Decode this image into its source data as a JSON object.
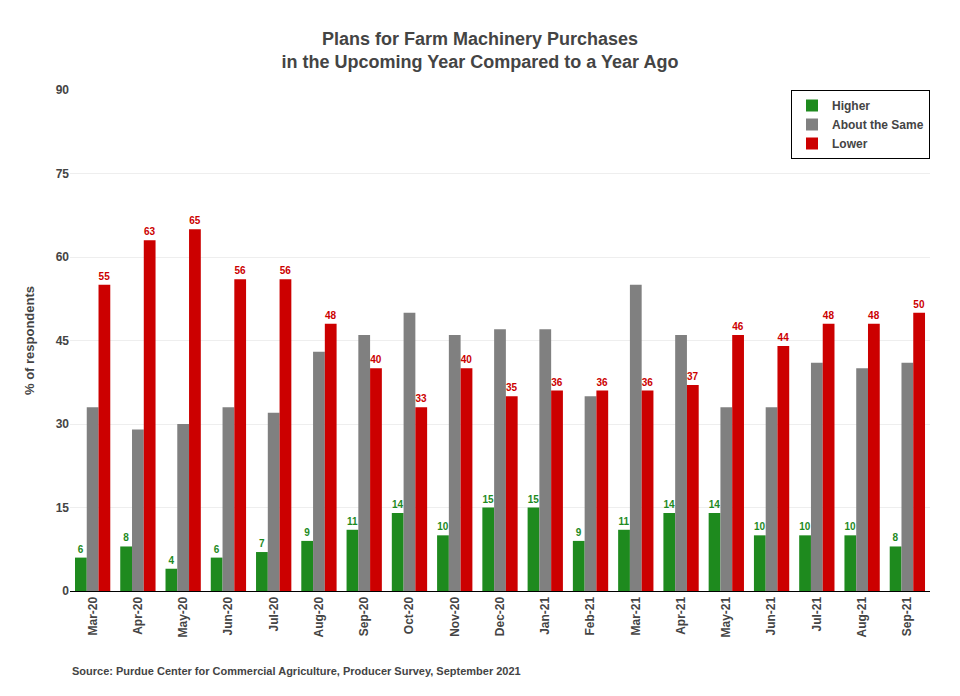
{
  "chart_data": {
    "type": "bar",
    "title": "Plans for Farm Machinery Purchases\nin the Upcoming Year Compared to a Year Ago",
    "y_label": "% of respondents",
    "annotations": [
      "Source: Purdue Center for Commercial Agriculture, Producer Survey, September 2021"
    ],
    "categories": [
      "Mar-20",
      "Apr-20",
      "May-20",
      "Jun-20",
      "Jul-20",
      "Aug-20",
      "Sep-20",
      "Oct-20",
      "Nov-20",
      "Dec-20",
      "Jan-21",
      "Feb-21",
      "Mar-21",
      "Apr-21",
      "May-21",
      "Jun-21",
      "Jul-21",
      "Aug-21",
      "Sep-21"
    ],
    "series": [
      {
        "name": "Higher",
        "color": "#1e8a1e",
        "data_labels": true,
        "values": [
          6,
          8,
          4,
          6,
          7,
          9,
          11,
          14,
          10,
          15,
          15,
          9,
          11,
          14,
          14,
          10,
          10,
          10,
          8
        ]
      },
      {
        "name": "About the Same",
        "color": "#808080",
        "data_labels": false,
        "values": [
          33,
          29,
          30,
          33,
          32,
          43,
          46,
          50,
          46,
          47,
          47,
          35,
          55,
          46,
          33,
          33,
          41,
          40,
          41
        ]
      },
      {
        "name": "Lower",
        "color": "#cc0000",
        "data_labels": true,
        "values": [
          55,
          63,
          65,
          56,
          56,
          48,
          40,
          33,
          40,
          35,
          36,
          36,
          36,
          37,
          46,
          44,
          48,
          48,
          50
        ]
      }
    ],
    "ylim": [
      0,
      90
    ],
    "yticks": [
      0,
      15,
      30,
      45,
      60,
      75,
      90
    ],
    "grid": true,
    "legend": "upper right"
  }
}
